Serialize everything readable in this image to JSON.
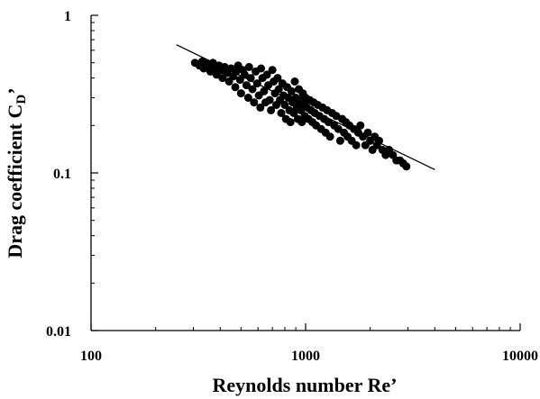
{
  "chart_data": {
    "type": "scatter",
    "title": "",
    "xlabel": "Reynolds number Re’",
    "ylabel": "Drag coefficient C",
    "ylabel_sub": "D",
    "ylabel_prime": "’",
    "x_scale": "log",
    "y_scale": "log",
    "xlim": [
      100,
      10000
    ],
    "ylim": [
      0.01,
      1
    ],
    "x_ticks": [
      100,
      1000,
      10000
    ],
    "x_tick_labels": [
      "100",
      "1000",
      "10000"
    ],
    "y_ticks": [
      0.01,
      0.1,
      1
    ],
    "y_tick_labels": [
      "0.01",
      "0.1",
      "1"
    ],
    "grid": false,
    "legend": "none",
    "marker_color": "#000000",
    "fit_line": {
      "x": [
        250,
        4000
      ],
      "y": [
        0.65,
        0.105
      ]
    },
    "points": [
      [
        305,
        0.5
      ],
      [
        320,
        0.48
      ],
      [
        330,
        0.51
      ],
      [
        335,
        0.46
      ],
      [
        345,
        0.49
      ],
      [
        355,
        0.47
      ],
      [
        360,
        0.44
      ],
      [
        370,
        0.5
      ],
      [
        375,
        0.46
      ],
      [
        385,
        0.42
      ],
      [
        395,
        0.48
      ],
      [
        405,
        0.45
      ],
      [
        410,
        0.4
      ],
      [
        420,
        0.47
      ],
      [
        430,
        0.43
      ],
      [
        440,
        0.38
      ],
      [
        450,
        0.46
      ],
      [
        460,
        0.41
      ],
      [
        470,
        0.35
      ],
      [
        475,
        0.44
      ],
      [
        485,
        0.48
      ],
      [
        495,
        0.39
      ],
      [
        500,
        0.32
      ],
      [
        510,
        0.45
      ],
      [
        520,
        0.42
      ],
      [
        530,
        0.36
      ],
      [
        540,
        0.3
      ],
      [
        545,
        0.47
      ],
      [
        555,
        0.4
      ],
      [
        565,
        0.34
      ],
      [
        575,
        0.28
      ],
      [
        585,
        0.44
      ],
      [
        595,
        0.37
      ],
      [
        605,
        0.31
      ],
      [
        615,
        0.26
      ],
      [
        620,
        0.46
      ],
      [
        630,
        0.4
      ],
      [
        640,
        0.33
      ],
      [
        650,
        0.28
      ],
      [
        660,
        0.42
      ],
      [
        670,
        0.36
      ],
      [
        680,
        0.29
      ],
      [
        690,
        0.25
      ],
      [
        700,
        0.45
      ],
      [
        710,
        0.38
      ],
      [
        720,
        0.32
      ],
      [
        730,
        0.27
      ],
      [
        740,
        0.4
      ],
      [
        750,
        0.34
      ],
      [
        760,
        0.29
      ],
      [
        770,
        0.24
      ],
      [
        780,
        0.37
      ],
      [
        790,
        0.31
      ],
      [
        800,
        0.27
      ],
      [
        810,
        0.22
      ],
      [
        820,
        0.35
      ],
      [
        830,
        0.3
      ],
      [
        840,
        0.25
      ],
      [
        850,
        0.21
      ],
      [
        860,
        0.33
      ],
      [
        870,
        0.28
      ],
      [
        880,
        0.24
      ],
      [
        890,
        0.38
      ],
      [
        900,
        0.3
      ],
      [
        910,
        0.26
      ],
      [
        920,
        0.22
      ],
      [
        930,
        0.34
      ],
      [
        940,
        0.29
      ],
      [
        950,
        0.25
      ],
      [
        960,
        0.21
      ],
      [
        970,
        0.32
      ],
      [
        980,
        0.27
      ],
      [
        990,
        0.23
      ],
      [
        1000,
        0.3
      ],
      [
        1015,
        0.26
      ],
      [
        1030,
        0.22
      ],
      [
        1045,
        0.29
      ],
      [
        1060,
        0.25
      ],
      [
        1075,
        0.21
      ],
      [
        1090,
        0.28
      ],
      [
        1105,
        0.24
      ],
      [
        1120,
        0.2
      ],
      [
        1140,
        0.27
      ],
      [
        1160,
        0.23
      ],
      [
        1180,
        0.19
      ],
      [
        1200,
        0.26
      ],
      [
        1220,
        0.22
      ],
      [
        1240,
        0.18
      ],
      [
        1260,
        0.25
      ],
      [
        1280,
        0.21
      ],
      [
        1300,
        0.17
      ],
      [
        1330,
        0.24
      ],
      [
        1360,
        0.2
      ],
      [
        1390,
        0.23
      ],
      [
        1420,
        0.19
      ],
      [
        1450,
        0.16
      ],
      [
        1480,
        0.22
      ],
      [
        1510,
        0.18
      ],
      [
        1540,
        0.21
      ],
      [
        1570,
        0.17
      ],
      [
        1600,
        0.2
      ],
      [
        1640,
        0.16
      ],
      [
        1680,
        0.19
      ],
      [
        1720,
        0.15
      ],
      [
        1760,
        0.18
      ],
      [
        1800,
        0.2
      ],
      [
        1850,
        0.17
      ],
      [
        1900,
        0.15
      ],
      [
        1950,
        0.18
      ],
      [
        2000,
        0.16
      ],
      [
        2050,
        0.14
      ],
      [
        2100,
        0.17
      ],
      [
        2150,
        0.15
      ],
      [
        2200,
        0.16
      ],
      [
        2280,
        0.14
      ],
      [
        2360,
        0.13
      ],
      [
        2450,
        0.14
      ],
      [
        2550,
        0.13
      ],
      [
        2650,
        0.12
      ],
      [
        2750,
        0.12
      ],
      [
        2850,
        0.115
      ],
      [
        2950,
        0.11
      ]
    ]
  }
}
